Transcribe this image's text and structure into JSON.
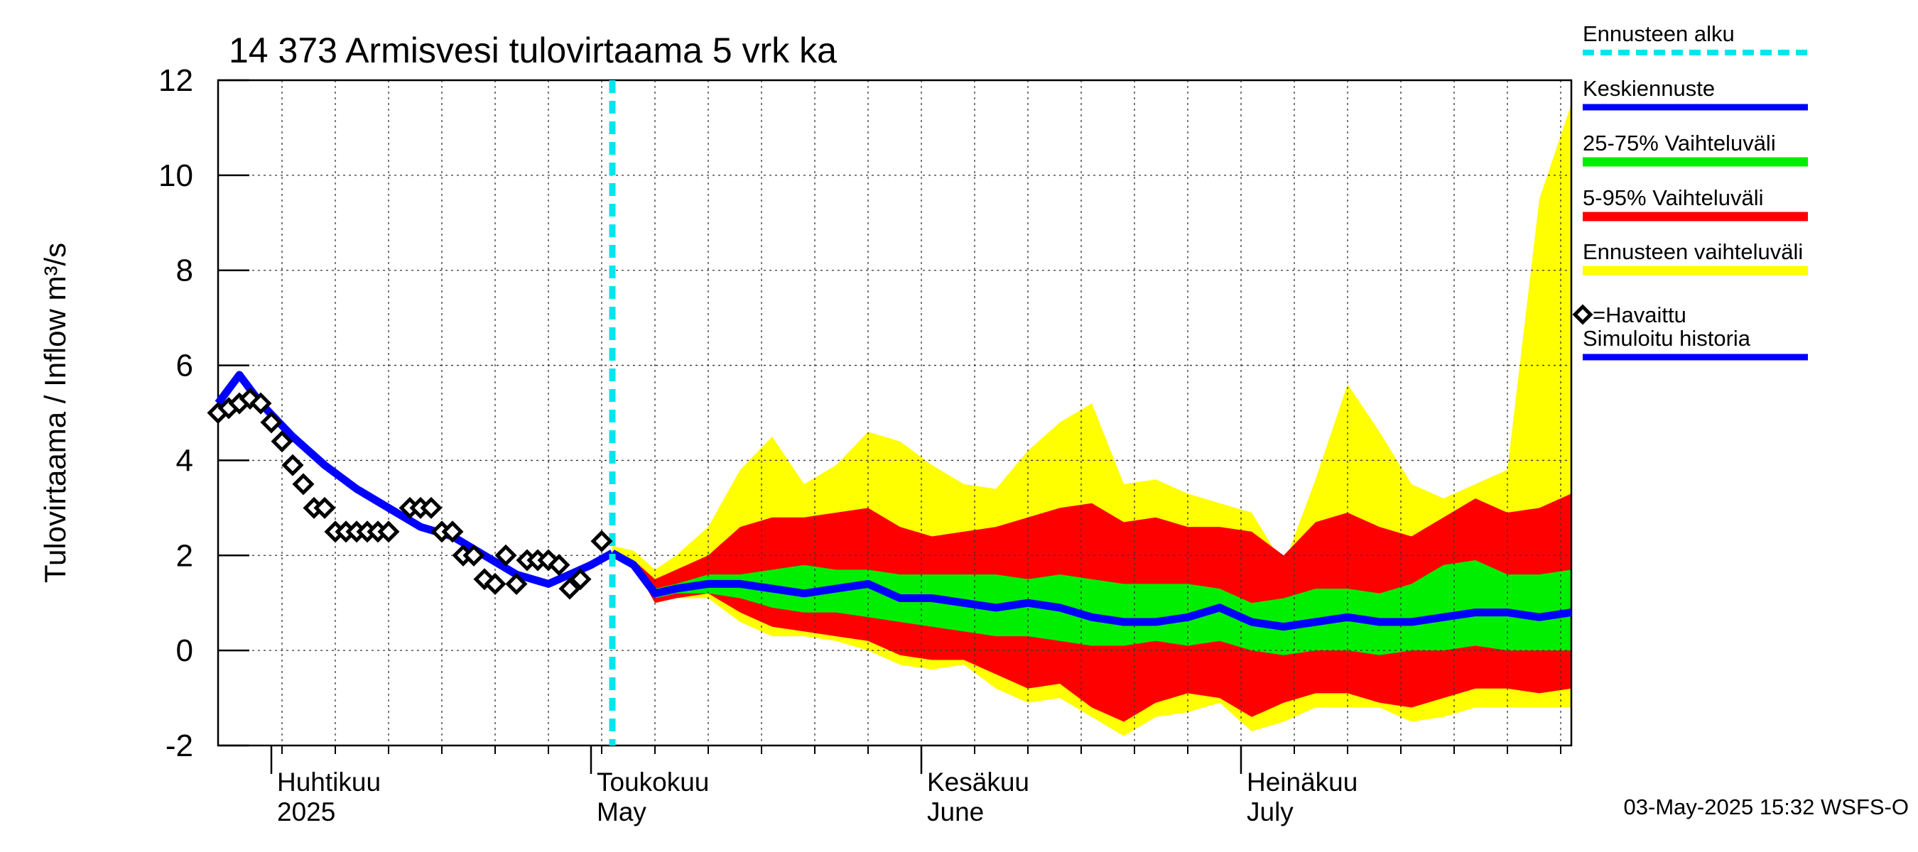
{
  "chart_data": {
    "type": "area",
    "title": "14 373 Armisvesi tulovirtaama 5 vrk ka",
    "ylabel": "Tulovirtaama / Inflow    m³/s",
    "ylim": [
      -2,
      12
    ],
    "yticks": [
      "-2",
      "0",
      "2",
      "4",
      "6",
      "8",
      "10",
      "12"
    ],
    "xlim": [
      "2025-03-27",
      "2025-08-01"
    ],
    "forecast_start": "2025-05-03",
    "months": [
      {
        "name": "Huhtikuu",
        "sub": "2025",
        "date": "2025-04-01"
      },
      {
        "name": "Toukokuu",
        "sub": "May",
        "date": "2025-05-01"
      },
      {
        "name": "Kesäkuu",
        "sub": "June",
        "date": "2025-06-01"
      },
      {
        "name": "Heinäkuu",
        "sub": "July",
        "date": "2025-07-01"
      }
    ],
    "timestamp": "03-May-2025 15:32 WSFS-O",
    "legend": [
      {
        "label": "Ennusteen alku",
        "color": "#00e5ee",
        "style": "dashed"
      },
      {
        "label": "Keskiennuste",
        "color": "#0000ff",
        "style": "line"
      },
      {
        "label": "25-75% Vaihteluväli",
        "color": "#00ee00",
        "style": "band"
      },
      {
        "label": "5-95% Vaihteluväli",
        "color": "#ff0000",
        "style": "band"
      },
      {
        "label": "Ennusteen vaihteluväli",
        "color": "#ffff00",
        "style": "band"
      },
      {
        "label": "=Havaittu",
        "color": "#000000",
        "style": "diamond"
      },
      {
        "label": "Simuloitu historia",
        "color": "#0000ff",
        "style": "line"
      }
    ],
    "forecast_dates": [
      "2025-05-03",
      "2025-05-05",
      "2025-05-07",
      "2025-05-09",
      "2025-05-12",
      "2025-05-15",
      "2025-05-18",
      "2025-05-21",
      "2025-05-24",
      "2025-05-27",
      "2025-05-30",
      "2025-06-02",
      "2025-06-05",
      "2025-06-08",
      "2025-06-11",
      "2025-06-14",
      "2025-06-17",
      "2025-06-20",
      "2025-06-23",
      "2025-06-26",
      "2025-06-29",
      "2025-07-02",
      "2025-07-05",
      "2025-07-08",
      "2025-07-11",
      "2025-07-14",
      "2025-07-17",
      "2025-07-20",
      "2025-07-23",
      "2025-07-26",
      "2025-07-29",
      "2025-08-01"
    ],
    "series": [
      {
        "name": "Ennusteen vaihteluväli",
        "color": "#ffff00",
        "upper": [
          2.2,
          2.1,
          1.7,
          2.0,
          2.6,
          3.8,
          4.5,
          3.5,
          3.9,
          4.6,
          4.4,
          3.9,
          3.5,
          3.4,
          4.2,
          4.8,
          5.2,
          3.5,
          3.6,
          3.3,
          3.1,
          2.9,
          1.8,
          3.6,
          5.6,
          4.6,
          3.5,
          3.2,
          3.5,
          3.8,
          9.5,
          11.5
        ],
        "lower": [
          2.0,
          1.8,
          1.0,
          1.1,
          1.1,
          0.6,
          0.3,
          0.3,
          0.2,
          0.0,
          -0.3,
          -0.4,
          -0.3,
          -0.8,
          -1.1,
          -1.0,
          -1.4,
          -1.8,
          -1.4,
          -1.3,
          -1.1,
          -1.7,
          -1.5,
          -1.2,
          -1.2,
          -1.2,
          -1.5,
          -1.4,
          -1.2,
          -1.2,
          -1.2,
          -1.2
        ]
      },
      {
        "name": "5-95% Vaihteluväli",
        "color": "#ff0000",
        "upper": [
          2.1,
          1.9,
          1.5,
          1.7,
          2.0,
          2.6,
          2.8,
          2.8,
          2.9,
          3.0,
          2.6,
          2.4,
          2.5,
          2.6,
          2.8,
          3.0,
          3.1,
          2.7,
          2.8,
          2.6,
          2.6,
          2.5,
          2.0,
          2.7,
          2.9,
          2.6,
          2.4,
          2.8,
          3.2,
          2.9,
          3.0,
          3.3
        ],
        "lower": [
          2.0,
          1.8,
          1.0,
          1.1,
          1.2,
          0.8,
          0.5,
          0.4,
          0.3,
          0.2,
          -0.1,
          -0.2,
          -0.2,
          -0.5,
          -0.8,
          -0.7,
          -1.2,
          -1.5,
          -1.1,
          -0.9,
          -1.0,
          -1.4,
          -1.1,
          -0.9,
          -0.9,
          -1.1,
          -1.2,
          -1.0,
          -0.8,
          -0.8,
          -0.9,
          -0.8
        ]
      },
      {
        "name": "25-75% Vaihteluväli",
        "color": "#00ee00",
        "upper": [
          2.1,
          1.9,
          1.3,
          1.4,
          1.6,
          1.6,
          1.7,
          1.8,
          1.7,
          1.7,
          1.6,
          1.6,
          1.6,
          1.6,
          1.5,
          1.6,
          1.5,
          1.4,
          1.4,
          1.4,
          1.3,
          1.0,
          1.1,
          1.3,
          1.3,
          1.2,
          1.4,
          1.8,
          1.9,
          1.6,
          1.6,
          1.7
        ],
        "lower": [
          2.0,
          1.8,
          1.1,
          1.2,
          1.2,
          1.1,
          0.9,
          0.8,
          0.8,
          0.7,
          0.6,
          0.5,
          0.4,
          0.3,
          0.3,
          0.2,
          0.1,
          0.1,
          0.2,
          0.1,
          0.2,
          0.0,
          -0.1,
          0.0,
          0.0,
          -0.1,
          0.0,
          0.0,
          0.1,
          0.0,
          0.0,
          0.0
        ]
      },
      {
        "name": "Keskiennuste",
        "color": "#0000ff",
        "values": [
          2.05,
          1.8,
          1.2,
          1.3,
          1.4,
          1.4,
          1.3,
          1.2,
          1.3,
          1.4,
          1.1,
          1.1,
          1.0,
          0.9,
          1.0,
          0.9,
          0.7,
          0.6,
          0.6,
          0.7,
          0.9,
          0.6,
          0.5,
          0.6,
          0.7,
          0.6,
          0.6,
          0.7,
          0.8,
          0.8,
          0.7,
          0.8
        ]
      },
      {
        "name": "Simuloitu historia",
        "color": "#0000ff",
        "dates": [
          "2025-03-27",
          "2025-03-28",
          "2025-03-29",
          "2025-03-31",
          "2025-04-03",
          "2025-04-06",
          "2025-04-09",
          "2025-04-12",
          "2025-04-15",
          "2025-04-18",
          "2025-04-21",
          "2025-04-24",
          "2025-04-27",
          "2025-04-29",
          "2025-05-01",
          "2025-05-03"
        ],
        "values": [
          5.2,
          5.5,
          5.8,
          5.2,
          4.5,
          3.9,
          3.4,
          3.0,
          2.6,
          2.4,
          2.0,
          1.6,
          1.4,
          1.6,
          1.8,
          2.05
        ]
      },
      {
        "name": "Havaittu",
        "color": "#000000",
        "dates": [
          "2025-03-27",
          "2025-03-28",
          "2025-03-29",
          "2025-03-30",
          "2025-03-31",
          "2025-04-01",
          "2025-04-02",
          "2025-04-03",
          "2025-04-04",
          "2025-04-05",
          "2025-04-06",
          "2025-04-07",
          "2025-04-08",
          "2025-04-09",
          "2025-04-10",
          "2025-04-11",
          "2025-04-12",
          "2025-04-14",
          "2025-04-15",
          "2025-04-16",
          "2025-04-17",
          "2025-04-18",
          "2025-04-19",
          "2025-04-20",
          "2025-04-21",
          "2025-04-22",
          "2025-04-23",
          "2025-04-24",
          "2025-04-25",
          "2025-04-26",
          "2025-04-27",
          "2025-04-28",
          "2025-04-29",
          "2025-04-30",
          "2025-05-02"
        ],
        "values": [
          5.0,
          5.1,
          5.2,
          5.3,
          5.2,
          4.8,
          4.4,
          3.9,
          3.5,
          3.0,
          3.0,
          2.5,
          2.5,
          2.5,
          2.5,
          2.5,
          2.5,
          3.0,
          3.0,
          3.0,
          2.5,
          2.5,
          2.0,
          2.0,
          1.5,
          1.4,
          2.0,
          1.4,
          1.9,
          1.9,
          1.9,
          1.8,
          1.3,
          1.5,
          2.3
        ]
      }
    ]
  }
}
